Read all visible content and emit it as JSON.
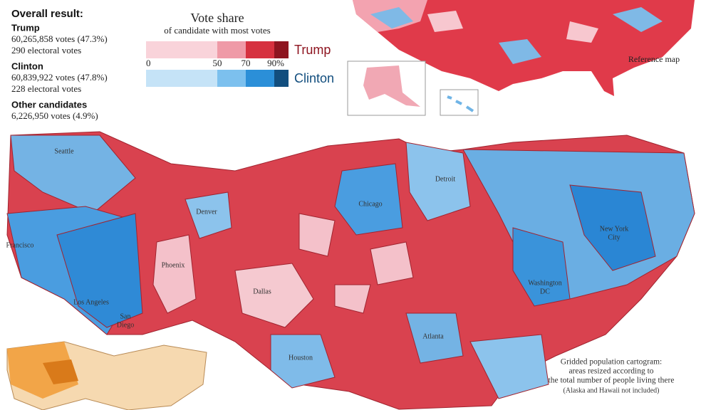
{
  "results": {
    "title": "Overall result:",
    "candidates": [
      {
        "name": "Trump",
        "votes": "60,265,858 votes (47.3%)",
        "electoral": "290 electoral votes"
      },
      {
        "name": "Clinton",
        "votes": "60,839,922 votes (47.8%)",
        "electoral": "228 electoral votes"
      },
      {
        "name": "Other candidates",
        "votes": "6,226,950 votes (4.9%)"
      }
    ]
  },
  "legend": {
    "title": "Vote share",
    "subtitle": "of candidate with most votes",
    "rows": [
      {
        "name": "Trump",
        "colors": [
          "#f9d3da",
          "#ef9aa7",
          "#d6313f",
          "#8e1520"
        ]
      },
      {
        "name": "Clinton",
        "colors": [
          "#c5e3f7",
          "#7cc0ee",
          "#2b8fd8",
          "#124e7e"
        ]
      }
    ],
    "ticks": [
      "0",
      "50",
      "70",
      "90%"
    ]
  },
  "reference_map": {
    "label": "Reference map"
  },
  "cities": [
    {
      "lines": [
        "Seattle"
      ]
    },
    {
      "lines": [
        "Francisco"
      ]
    },
    {
      "lines": [
        "Denver"
      ]
    },
    {
      "lines": [
        "Phoenix"
      ]
    },
    {
      "lines": [
        "Los Angeles"
      ]
    },
    {
      "lines": [
        "San",
        "Diego"
      ]
    },
    {
      "lines": [
        "Dallas"
      ]
    },
    {
      "lines": [
        "Houston"
      ]
    },
    {
      "lines": [
        "Chicago"
      ]
    },
    {
      "lines": [
        "Detroit"
      ]
    },
    {
      "lines": [
        "Atlanta"
      ]
    },
    {
      "lines": [
        "New York",
        "City"
      ]
    },
    {
      "lines": [
        "Washington",
        "DC"
      ]
    }
  ],
  "caption": {
    "lines": [
      "Gridded population cartogram:",
      "areas resized according to",
      "the total number of people living there"
    ],
    "note": "(Alaska and Hawaii not included)"
  }
}
